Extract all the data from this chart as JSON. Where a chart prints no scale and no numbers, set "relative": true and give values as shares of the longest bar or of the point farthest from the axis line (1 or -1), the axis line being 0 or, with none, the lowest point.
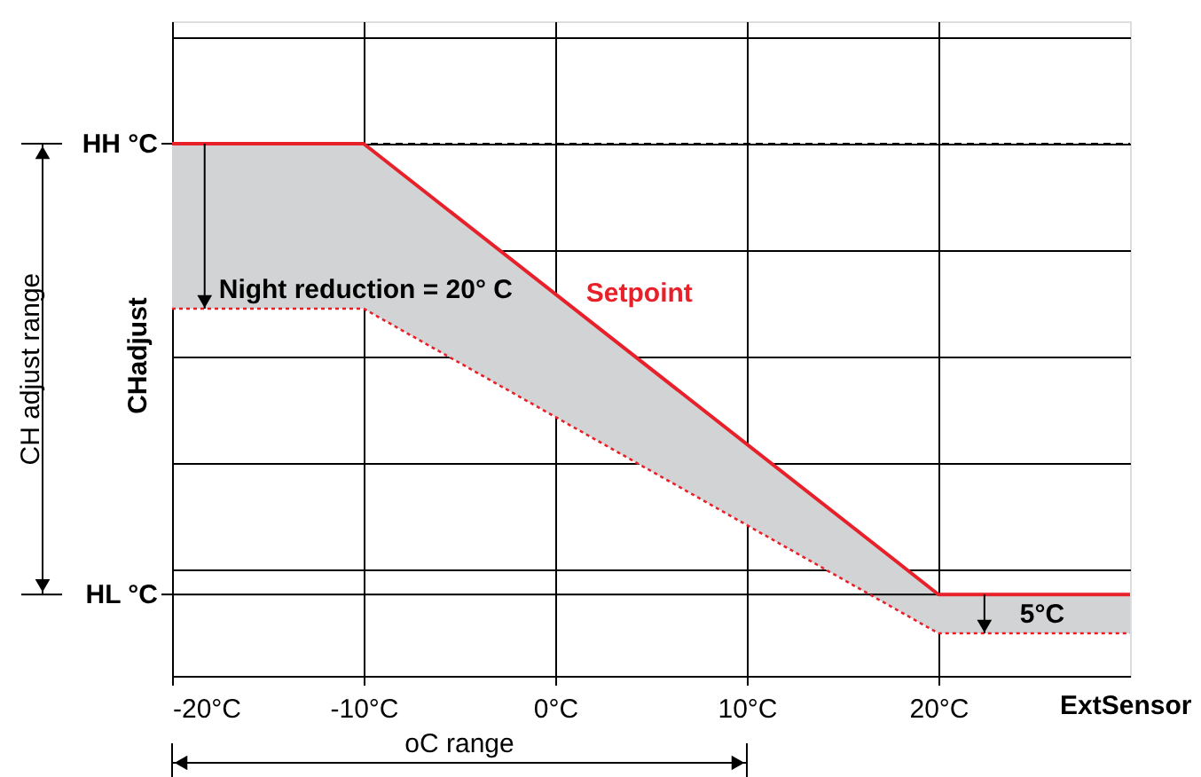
{
  "chart_data": {
    "type": "line",
    "relative": true,
    "xlabel": "ExtSensor",
    "ylabel": "CHadjust",
    "xlim": [
      -20,
      30
    ],
    "xticks": [
      {
        "value": -20,
        "label": "-20°C"
      },
      {
        "value": -10,
        "label": "-10°C"
      },
      {
        "value": 0,
        "label": "0°C"
      },
      {
        "value": 10,
        "label": "10°C"
      },
      {
        "value": 20,
        "label": "20°C"
      }
    ],
    "series": [
      {
        "name": "Setpoint",
        "color": "#e8202a",
        "line_style": "solid",
        "x": [
          -20,
          -10,
          20,
          30
        ],
        "values": [
          1,
          1,
          0.153,
          0.153
        ],
        "lower": [
          0.69,
          0.69,
          0.08,
          0.08
        ],
        "upper": [
          1,
          1,
          0.153,
          0.153
        ]
      },
      {
        "color": "#e8202a",
        "line_style": "dotted",
        "x": [
          -20,
          -10,
          20,
          30
        ],
        "values": [
          0.69,
          0.69,
          0.08,
          0.08
        ]
      }
    ],
    "ref_lines": [
      {
        "axis": "y",
        "value": 1,
        "label": "HH °C",
        "color": "#000000",
        "line_style": "dashed"
      },
      {
        "axis": "y",
        "value": 0.153,
        "label": "HL °C",
        "color": "#000000",
        "line_style": "solid"
      }
    ],
    "annotations": [
      "CH adjust range",
      "oC range",
      "Night reduction = 20° C",
      "5°C"
    ],
    "grid": true
  }
}
